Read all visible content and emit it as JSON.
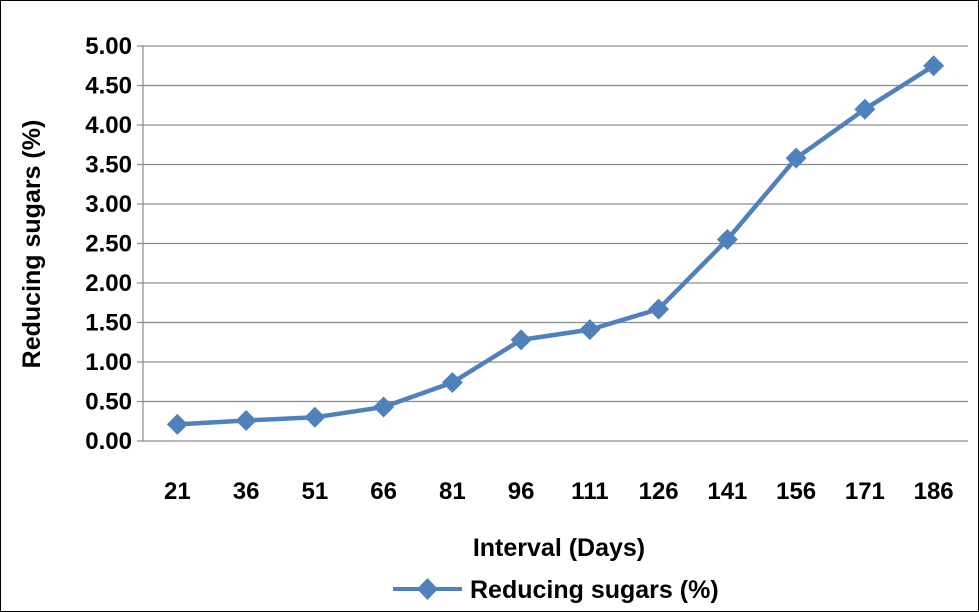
{
  "chart_data": {
    "type": "line",
    "xlabel": "Interval (Days)",
    "ylabel": "Reducing sugars (%)",
    "categories": [
      "21",
      "36",
      "51",
      "66",
      "81",
      "96",
      "111",
      "126",
      "141",
      "156",
      "171",
      "186"
    ],
    "series": [
      {
        "name": "Reducing sugars (%)",
        "values": [
          0.21,
          0.26,
          0.3,
          0.43,
          0.74,
          1.28,
          1.41,
          1.67,
          2.55,
          3.58,
          4.2,
          4.75
        ],
        "color": "#4F81BD",
        "marker": "diamond"
      }
    ],
    "ylim": [
      0,
      5
    ],
    "yticks": [
      "0.00",
      "0.50",
      "1.00",
      "1.50",
      "2.00",
      "2.50",
      "3.00",
      "3.50",
      "4.00",
      "4.50",
      "5.00"
    ],
    "grid": true,
    "legend_position": "bottom"
  }
}
